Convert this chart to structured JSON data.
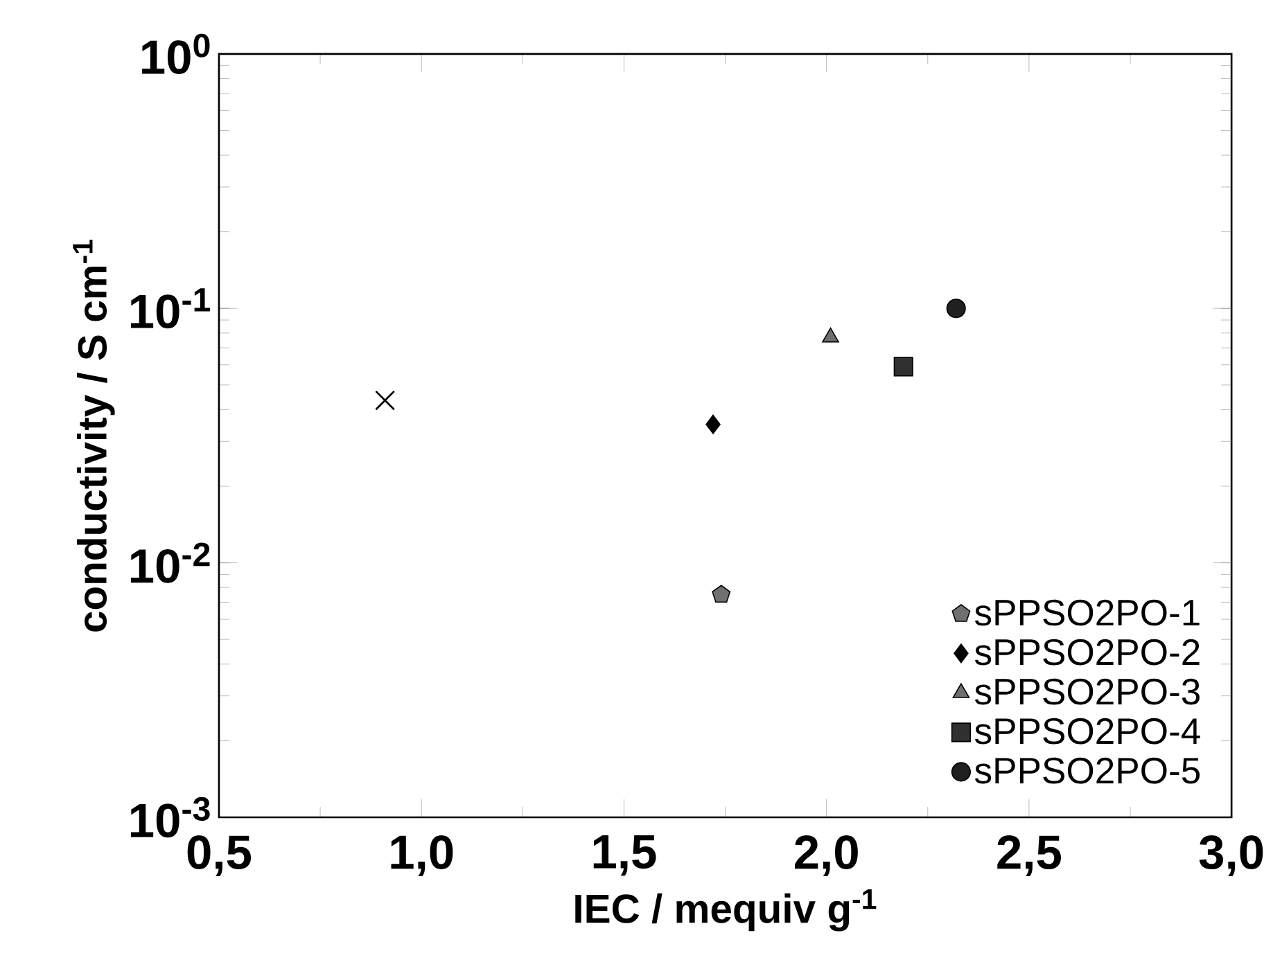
{
  "chart_data": {
    "type": "scatter",
    "xlabel": "IEC / mequiv g$^{-1}$",
    "ylabel": "conductivity / S cm$^{-1}$",
    "log": "y",
    "xlim": [
      0.5,
      3.0
    ],
    "ylim": [
      0.001,
      1
    ],
    "xticks": [
      {
        "value": 0.5,
        "label": "0,5"
      },
      {
        "value": 1.0,
        "label": "1,0"
      },
      {
        "value": 1.5,
        "label": "1,5"
      },
      {
        "value": 2.0,
        "label": "2,0"
      },
      {
        "value": 2.5,
        "label": "2,5"
      },
      {
        "value": 3.0,
        "label": "3,0"
      }
    ],
    "yticks": [
      {
        "value": 0.001,
        "label": "10$^{-3}$"
      },
      {
        "value": 0.01,
        "label": "10$^{-2}$"
      },
      {
        "value": 0.1,
        "label": "10$^{-1}$"
      },
      {
        "value": 1,
        "label": "10$^{0}$"
      }
    ],
    "grid": false,
    "legend": "bottom right",
    "series": [
      {
        "name": "sPPSO2PO-1",
        "color": "#707070",
        "x": [
          1.74
        ],
        "values": [
          0.0075
        ]
      },
      {
        "name": "sPPSO2PO-2",
        "color": "#000000",
        "marker": "diamond",
        "x": [
          1.72
        ],
        "values": [
          0.035
        ]
      },
      {
        "name": "sPPSO2PO-3",
        "color": "#6e6e6e",
        "marker": "triangle",
        "x": [
          2.01
        ],
        "values": [
          0.077
        ]
      },
      {
        "name": "sPPSO2PO-4",
        "color": "#303030",
        "marker": "square",
        "x": [
          2.19
        ],
        "values": [
          0.059
        ]
      },
      {
        "name": "sPPSO2PO-5",
        "color": "#202020",
        "marker": "circle",
        "x": [
          2.32
        ],
        "values": [
          0.1
        ]
      },
      {
        "color": "#000000",
        "marker": "cross",
        "x": [
          0.91
        ],
        "values": [
          0.0435
        ]
      }
    ]
  }
}
